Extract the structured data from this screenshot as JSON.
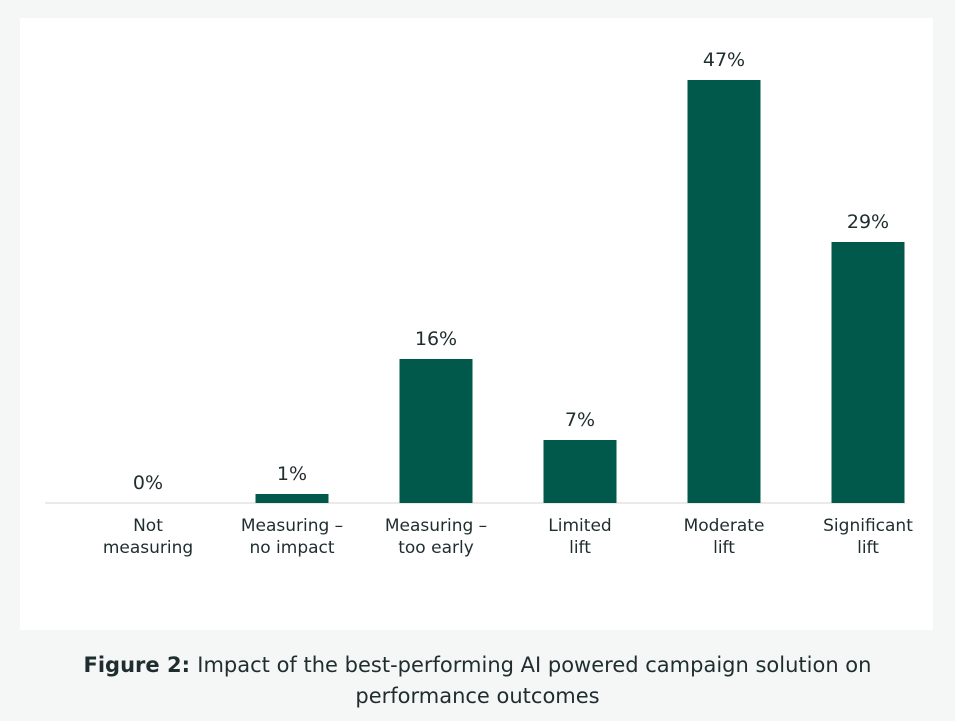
{
  "chart_data": {
    "type": "bar",
    "categories": [
      [
        "Not",
        "measuring"
      ],
      [
        "Measuring –",
        "no impact"
      ],
      [
        "Measuring –",
        "too early"
      ],
      [
        "Limited",
        "lift"
      ],
      [
        "Moderate",
        "lift"
      ],
      [
        "Significant",
        "lift"
      ]
    ],
    "values": [
      0,
      1,
      16,
      7,
      47,
      29
    ],
    "value_labels": [
      "0%",
      "1%",
      "16%",
      "7%",
      "47%",
      "29%"
    ],
    "ylim": [
      0,
      47
    ],
    "grid": false,
    "bar_color": "#00594a"
  },
  "caption": {
    "prefix": "Figure 2:",
    "line1": "Impact of the best-performing AI powered campaign solution on",
    "line2": "performance outcomes"
  }
}
